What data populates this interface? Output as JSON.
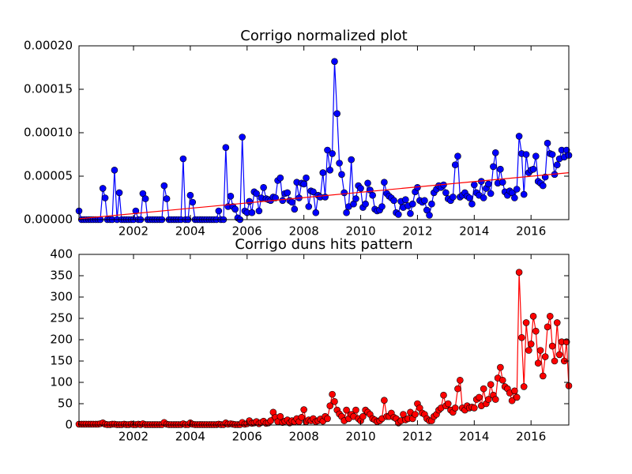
{
  "chart_data": [
    {
      "type": "line",
      "title": "Corrigo normalized plot",
      "xlim": [
        2000.08,
        2017.33
      ],
      "xticks": [
        2002,
        2004,
        2006,
        2008,
        2010,
        2012,
        2014,
        2016
      ],
      "ylim": [
        0,
        0.0002
      ],
      "yticks": [
        {
          "value": 0,
          "label": "0.00000"
        },
        {
          "value": 5e-05,
          "label": "0.00005"
        },
        {
          "value": 0.0001,
          "label": "0.00010"
        },
        {
          "value": 0.00015,
          "label": "0.00015"
        },
        {
          "value": 0.0002,
          "label": "0.00020"
        }
      ],
      "x": [
        2000.08,
        2000.17,
        2000.25,
        2000.33,
        2000.42,
        2000.5,
        2000.58,
        2000.67,
        2000.75,
        2000.83,
        2000.92,
        2001,
        2001.08,
        2001.17,
        2001.25,
        2001.33,
        2001.42,
        2001.5,
        2001.58,
        2001.67,
        2001.75,
        2001.83,
        2001.92,
        2002,
        2002.08,
        2002.17,
        2002.25,
        2002.33,
        2002.42,
        2002.5,
        2002.58,
        2002.67,
        2002.75,
        2002.83,
        2002.92,
        2003,
        2003.08,
        2003.17,
        2003.25,
        2003.33,
        2003.42,
        2003.5,
        2003.58,
        2003.67,
        2003.75,
        2003.83,
        2003.92,
        2004,
        2004.08,
        2004.17,
        2004.25,
        2004.33,
        2004.42,
        2004.5,
        2004.58,
        2004.67,
        2004.75,
        2004.83,
        2004.92,
        2005,
        2005.08,
        2005.17,
        2005.25,
        2005.33,
        2005.42,
        2005.5,
        2005.58,
        2005.67,
        2005.75,
        2005.83,
        2005.92,
        2006,
        2006.08,
        2006.17,
        2006.25,
        2006.33,
        2006.42,
        2006.5,
        2006.58,
        2006.67,
        2006.75,
        2006.83,
        2006.92,
        2007,
        2007.08,
        2007.17,
        2007.25,
        2007.33,
        2007.42,
        2007.5,
        2007.58,
        2007.67,
        2007.75,
        2007.83,
        2007.92,
        2008,
        2008.08,
        2008.17,
        2008.25,
        2008.33,
        2008.42,
        2008.5,
        2008.58,
        2008.67,
        2008.75,
        2008.83,
        2008.92,
        2009,
        2009.08,
        2009.17,
        2009.25,
        2009.33,
        2009.42,
        2009.5,
        2009.58,
        2009.67,
        2009.75,
        2009.83,
        2009.92,
        2010,
        2010.08,
        2010.17,
        2010.25,
        2010.33,
        2010.42,
        2010.5,
        2010.58,
        2010.67,
        2010.75,
        2010.83,
        2010.92,
        2011,
        2011.08,
        2011.17,
        2011.25,
        2011.33,
        2011.42,
        2011.5,
        2011.58,
        2011.67,
        2011.75,
        2011.83,
        2011.92,
        2012,
        2012.08,
        2012.17,
        2012.25,
        2012.33,
        2012.42,
        2012.5,
        2012.58,
        2012.67,
        2012.75,
        2012.83,
        2012.92,
        2013,
        2013.08,
        2013.17,
        2013.25,
        2013.33,
        2013.42,
        2013.5,
        2013.58,
        2013.67,
        2013.75,
        2013.83,
        2013.92,
        2014,
        2014.08,
        2014.17,
        2014.25,
        2014.33,
        2014.42,
        2014.5,
        2014.58,
        2014.67,
        2014.75,
        2014.83,
        2014.92,
        2015,
        2015.08,
        2015.17,
        2015.25,
        2015.33,
        2015.42,
        2015.5,
        2015.58,
        2015.67,
        2015.75,
        2015.83,
        2015.92,
        2016,
        2016.08,
        2016.17,
        2016.25,
        2016.33,
        2016.42,
        2016.5,
        2016.58,
        2016.67,
        2016.75,
        2016.83,
        2016.92,
        2017,
        2017.08,
        2017.17,
        2017.25,
        2017.33
      ],
      "series": [
        {
          "color": "#0000ff",
          "marker": "o",
          "values": [
            1e-05,
            0,
            0,
            0,
            0,
            0,
            0,
            0,
            0,
            0,
            3.6e-05,
            2.5e-05,
            0,
            0,
            0,
            5.7e-05,
            0,
            3.1e-05,
            0,
            0,
            0,
            0,
            0,
            0,
            1e-05,
            0,
            0,
            3e-05,
            2.4e-05,
            0,
            0,
            0,
            0,
            0,
            0,
            0,
            3.9e-05,
            2.4e-05,
            0,
            0,
            0,
            0,
            0,
            0,
            7e-05,
            0,
            0,
            2.8e-05,
            2e-05,
            0,
            0,
            0,
            0,
            0,
            0,
            0,
            0,
            0,
            0,
            1e-05,
            0,
            0,
            8.3e-05,
            1.5e-05,
            2.7e-05,
            1.5e-05,
            1.2e-05,
            2e-06,
            0,
            9.5e-05,
            1e-05,
            8e-06,
            2.1e-05,
            8e-06,
            3.2e-05,
            3e-05,
            1e-05,
            2.5e-05,
            3.7e-05,
            2.4e-05,
            2.3e-05,
            2.2e-05,
            2.6e-05,
            2.5e-05,
            4.5e-05,
            4.8e-05,
            2.2e-05,
            3e-05,
            3.1e-05,
            2.2e-05,
            2e-05,
            1.2e-05,
            4.3e-05,
            2.5e-05,
            4.2e-05,
            4.1e-05,
            4.8e-05,
            1.5e-05,
            3.3e-05,
            3.2e-05,
            8e-06,
            2.8e-05,
            2.6e-05,
            5.4e-05,
            2.6e-05,
            8e-05,
            5.7e-05,
            7.6e-05,
            0.000182,
            0.000122,
            6.5e-05,
            5.2e-05,
            3.1e-05,
            8e-06,
            1.5e-05,
            6.9e-05,
            1.8e-05,
            2.4e-05,
            3.9e-05,
            3.6e-05,
            1.4e-05,
            1.8e-05,
            4.2e-05,
            3.4e-05,
            2.8e-05,
            1.2e-05,
            1e-05,
            1.1e-05,
            1.5e-05,
            4.3e-05,
            3e-05,
            2.7e-05,
            2.5e-05,
            2.2e-05,
            8e-06,
            6e-06,
            2.1e-05,
            1.4e-05,
            2.3e-05,
            1.6e-05,
            7e-06,
            1.8e-05,
            3.2e-05,
            3.7e-05,
            2.2e-05,
            2e-05,
            2.2e-05,
            1.1e-05,
            5e-06,
            1.8e-05,
            3.1e-05,
            3.5e-05,
            3.9e-05,
            3.7e-05,
            4e-05,
            3.1e-05,
            2.4e-05,
            2.2e-05,
            2.6e-05,
            6.3e-05,
            7.3e-05,
            2.6e-05,
            2.8e-05,
            3.1e-05,
            2.7e-05,
            2.5e-05,
            1.8e-05,
            4e-05,
            3.1e-05,
            2.8e-05,
            4.4e-05,
            2.5e-05,
            3.6e-05,
            4.1e-05,
            3e-05,
            6.1e-05,
            7.7e-05,
            4.2e-05,
            5.8e-05,
            4.3e-05,
            3.2e-05,
            2.8e-05,
            3.3e-05,
            3.1e-05,
            2.5e-05,
            3.5e-05,
            9.6e-05,
            7.6e-05,
            2.9e-05,
            7.5e-05,
            5.4e-05,
            5.7e-05,
            5.8e-05,
            7.3e-05,
            4.4e-05,
            4.2e-05,
            3.9e-05,
            4.9e-05,
            8.8e-05,
            7.6e-05,
            7.5e-05,
            5.2e-05,
            6.3e-05,
            7e-05,
            8e-05,
            7.2e-05,
            8e-05,
            7.4e-05
          ]
        },
        {
          "color": "#ff0000",
          "x": [
            2000.08,
            2017.33
          ],
          "values": [
            1e-06,
            5.4e-05
          ]
        }
      ]
    },
    {
      "type": "line",
      "title": "Corrigo duns hits pattern",
      "xlim": [
        2000.08,
        2017.33
      ],
      "xticks": [
        2002,
        2004,
        2006,
        2008,
        2010,
        2012,
        2014,
        2016
      ],
      "ylim": [
        0,
        400
      ],
      "yticks": [
        0,
        50,
        100,
        150,
        200,
        250,
        300,
        350,
        400
      ],
      "x": [
        2000.08,
        2000.17,
        2000.25,
        2000.33,
        2000.42,
        2000.5,
        2000.58,
        2000.67,
        2000.75,
        2000.83,
        2000.92,
        2001,
        2001.08,
        2001.17,
        2001.25,
        2001.33,
        2001.42,
        2001.5,
        2001.58,
        2001.67,
        2001.75,
        2001.83,
        2001.92,
        2002,
        2002.08,
        2002.17,
        2002.25,
        2002.33,
        2002.42,
        2002.5,
        2002.58,
        2002.67,
        2002.75,
        2002.83,
        2002.92,
        2003,
        2003.08,
        2003.17,
        2003.25,
        2003.33,
        2003.42,
        2003.5,
        2003.58,
        2003.67,
        2003.75,
        2003.83,
        2003.92,
        2004,
        2004.08,
        2004.17,
        2004.25,
        2004.33,
        2004.42,
        2004.5,
        2004.58,
        2004.67,
        2004.75,
        2004.83,
        2004.92,
        2005,
        2005.08,
        2005.17,
        2005.25,
        2005.33,
        2005.42,
        2005.5,
        2005.58,
        2005.67,
        2005.75,
        2005.83,
        2005.92,
        2006,
        2006.08,
        2006.17,
        2006.25,
        2006.33,
        2006.42,
        2006.5,
        2006.58,
        2006.67,
        2006.75,
        2006.83,
        2006.92,
        2007,
        2007.08,
        2007.17,
        2007.25,
        2007.33,
        2007.42,
        2007.5,
        2007.58,
        2007.67,
        2007.75,
        2007.83,
        2007.92,
        2008,
        2008.08,
        2008.17,
        2008.25,
        2008.33,
        2008.42,
        2008.5,
        2008.58,
        2008.67,
        2008.75,
        2008.83,
        2008.92,
        2009,
        2009.08,
        2009.17,
        2009.25,
        2009.33,
        2009.42,
        2009.5,
        2009.58,
        2009.67,
        2009.75,
        2009.83,
        2009.92,
        2010,
        2010.08,
        2010.17,
        2010.25,
        2010.33,
        2010.42,
        2010.5,
        2010.58,
        2010.67,
        2010.75,
        2010.83,
        2010.92,
        2011,
        2011.08,
        2011.17,
        2011.25,
        2011.33,
        2011.42,
        2011.5,
        2011.58,
        2011.67,
        2011.75,
        2011.83,
        2011.92,
        2012,
        2012.08,
        2012.17,
        2012.25,
        2012.33,
        2012.42,
        2012.5,
        2012.58,
        2012.67,
        2012.75,
        2012.83,
        2012.92,
        2013,
        2013.08,
        2013.17,
        2013.25,
        2013.33,
        2013.42,
        2013.5,
        2013.58,
        2013.67,
        2013.75,
        2013.83,
        2013.92,
        2014,
        2014.08,
        2014.17,
        2014.25,
        2014.33,
        2014.42,
        2014.5,
        2014.58,
        2014.67,
        2014.75,
        2014.83,
        2014.92,
        2015,
        2015.08,
        2015.17,
        2015.25,
        2015.33,
        2015.42,
        2015.5,
        2015.58,
        2015.67,
        2015.75,
        2015.83,
        2015.92,
        2016,
        2016.08,
        2016.17,
        2016.25,
        2016.33,
        2016.42,
        2016.5,
        2016.58,
        2016.67,
        2016.75,
        2016.83,
        2016.92,
        2017,
        2017.08,
        2017.17,
        2017.25,
        2017.33
      ],
      "series": [
        {
          "color": "#ff0000",
          "marker": "o",
          "values": [
            2,
            2,
            2,
            2,
            2,
            2,
            2,
            2,
            2,
            3,
            5,
            2,
            1,
            1,
            2,
            2,
            1,
            1,
            1,
            2,
            1,
            1,
            2,
            1,
            1,
            2,
            1,
            3,
            1,
            1,
            1,
            1,
            1,
            1,
            1,
            1,
            6,
            2,
            1,
            1,
            1,
            1,
            1,
            1,
            3,
            1,
            1,
            5,
            2,
            1,
            1,
            1,
            1,
            1,
            1,
            1,
            1,
            1,
            1,
            2,
            1,
            1,
            5,
            2,
            3,
            2,
            1,
            1,
            1,
            6,
            2,
            3,
            10,
            4,
            5,
            8,
            3,
            6,
            9,
            4,
            5,
            10,
            30,
            18,
            8,
            20,
            6,
            9,
            12,
            5,
            10,
            8,
            15,
            8,
            18,
            36,
            8,
            12,
            10,
            15,
            8,
            10,
            14,
            9,
            20,
            15,
            45,
            72,
            55,
            35,
            26,
            20,
            10,
            35,
            15,
            25,
            20,
            35,
            15,
            10,
            20,
            35,
            30,
            25,
            15,
            12,
            8,
            10,
            15,
            58,
            20,
            20,
            28,
            18,
            15,
            5,
            10,
            25,
            12,
            15,
            30,
            15,
            25,
            50,
            40,
            28,
            25,
            15,
            10,
            10,
            20,
            25,
            35,
            40,
            70,
            45,
            50,
            35,
            30,
            40,
            85,
            105,
            40,
            35,
            45,
            40,
            42,
            40,
            60,
            65,
            45,
            85,
            50,
            60,
            95,
            70,
            60,
            110,
            135,
            105,
            90,
            85,
            75,
            57,
            80,
            65,
            358,
            205,
            90,
            240,
            175,
            190,
            255,
            220,
            145,
            175,
            115,
            160,
            230,
            255,
            185,
            150,
            240,
            165,
            195,
            150,
            195,
            92
          ]
        }
      ]
    }
  ]
}
